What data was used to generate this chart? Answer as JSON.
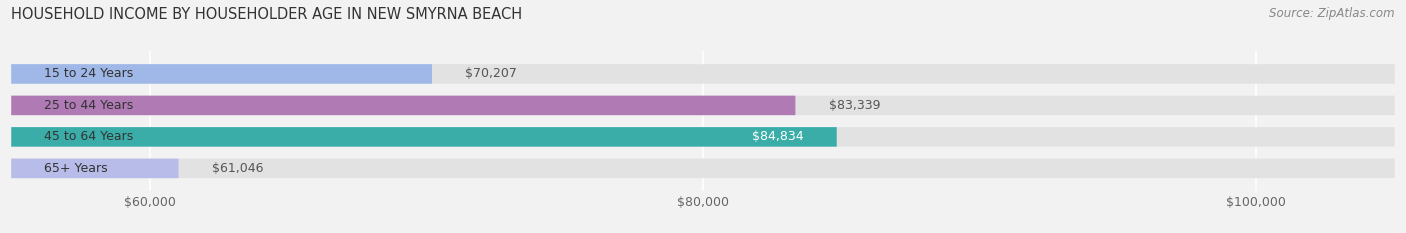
{
  "title": "HOUSEHOLD INCOME BY HOUSEHOLDER AGE IN NEW SMYRNA BEACH",
  "source": "Source: ZipAtlas.com",
  "categories": [
    "15 to 24 Years",
    "25 to 44 Years",
    "45 to 64 Years",
    "65+ Years"
  ],
  "values": [
    70207,
    83339,
    84834,
    61046
  ],
  "bar_colors": [
    "#9fb8e8",
    "#b07ab5",
    "#3aada8",
    "#b8bce8"
  ],
  "bar_labels": [
    "$70,207",
    "$83,339",
    "$84,834",
    "$61,046"
  ],
  "label_inside": [
    false,
    false,
    true,
    false
  ],
  "xmin": 55000,
  "xmax": 105000,
  "xticks": [
    60000,
    80000,
    100000
  ],
  "xticklabels": [
    "$60,000",
    "$80,000",
    "$100,000"
  ],
  "background_color": "#f2f2f2",
  "bar_background_color": "#e2e2e2",
  "title_fontsize": 10.5,
  "source_fontsize": 8.5,
  "tick_fontsize": 9,
  "label_fontsize": 9,
  "category_fontsize": 9
}
